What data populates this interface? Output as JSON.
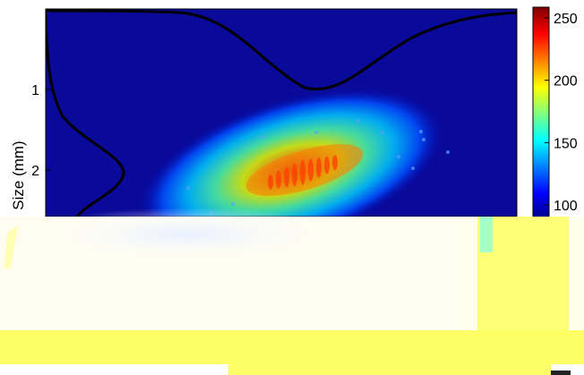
{
  "chart_data": {
    "type": "heatmap",
    "title": "",
    "ylabel": "Size (mm)",
    "xlabel": "",
    "y_ticks": [
      {
        "value": 1,
        "label": "1"
      },
      {
        "value": 2,
        "label": "2"
      }
    ],
    "colorbar": {
      "colormap": "jet",
      "ticks": [
        {
          "value": 100,
          "label": "100"
        },
        {
          "value": 150,
          "label": "150"
        },
        {
          "value": 200,
          "label": "200"
        },
        {
          "value": 250,
          "label": "250"
        }
      ]
    },
    "heat_blob": {
      "peak_value": 215,
      "center_y_mm": 2.05,
      "tilt_deg": -17
    },
    "profile_curves": [
      {
        "name": "",
        "color": "#000000",
        "orientation": "horizontal"
      },
      {
        "name": "",
        "color": "#000000",
        "orientation": "vertical"
      }
    ],
    "colors": {
      "background": "#00007f",
      "overlay_yellow": "#ffff66",
      "overlay_cyan": "#66ffff"
    }
  }
}
